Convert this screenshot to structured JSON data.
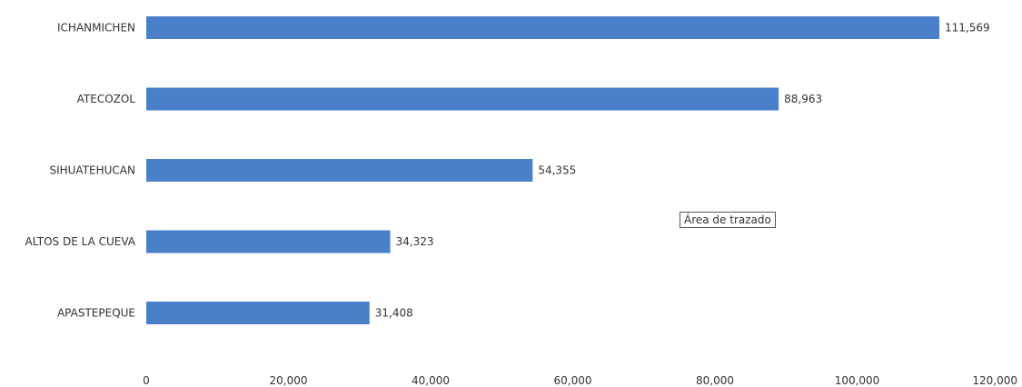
{
  "chart_data": {
    "type": "bar",
    "orientation": "horizontal",
    "categories": [
      "ICHANMICHEN",
      "ATECOZOL",
      "SIHUATEHUCAN",
      "ALTOS DE LA CUEVA",
      "APASTEPEQUE"
    ],
    "values": [
      111569,
      88963,
      54355,
      34323,
      31408
    ],
    "value_labels": [
      "111,569",
      "88,963",
      "54,355",
      "34,323",
      "31,408"
    ],
    "xlim": [
      0,
      120000
    ],
    "x_ticks": [
      0,
      20000,
      40000,
      60000,
      80000,
      100000,
      120000
    ],
    "x_tick_labels": [
      "0",
      "20,000",
      "40,000",
      "60,000",
      "80,000",
      "100,000",
      "120,000"
    ],
    "title": "",
    "xlabel": "",
    "ylabel": "",
    "grid": false,
    "bar_color": "#4a7fc9"
  },
  "tooltip": {
    "text": "Área de trazado"
  }
}
